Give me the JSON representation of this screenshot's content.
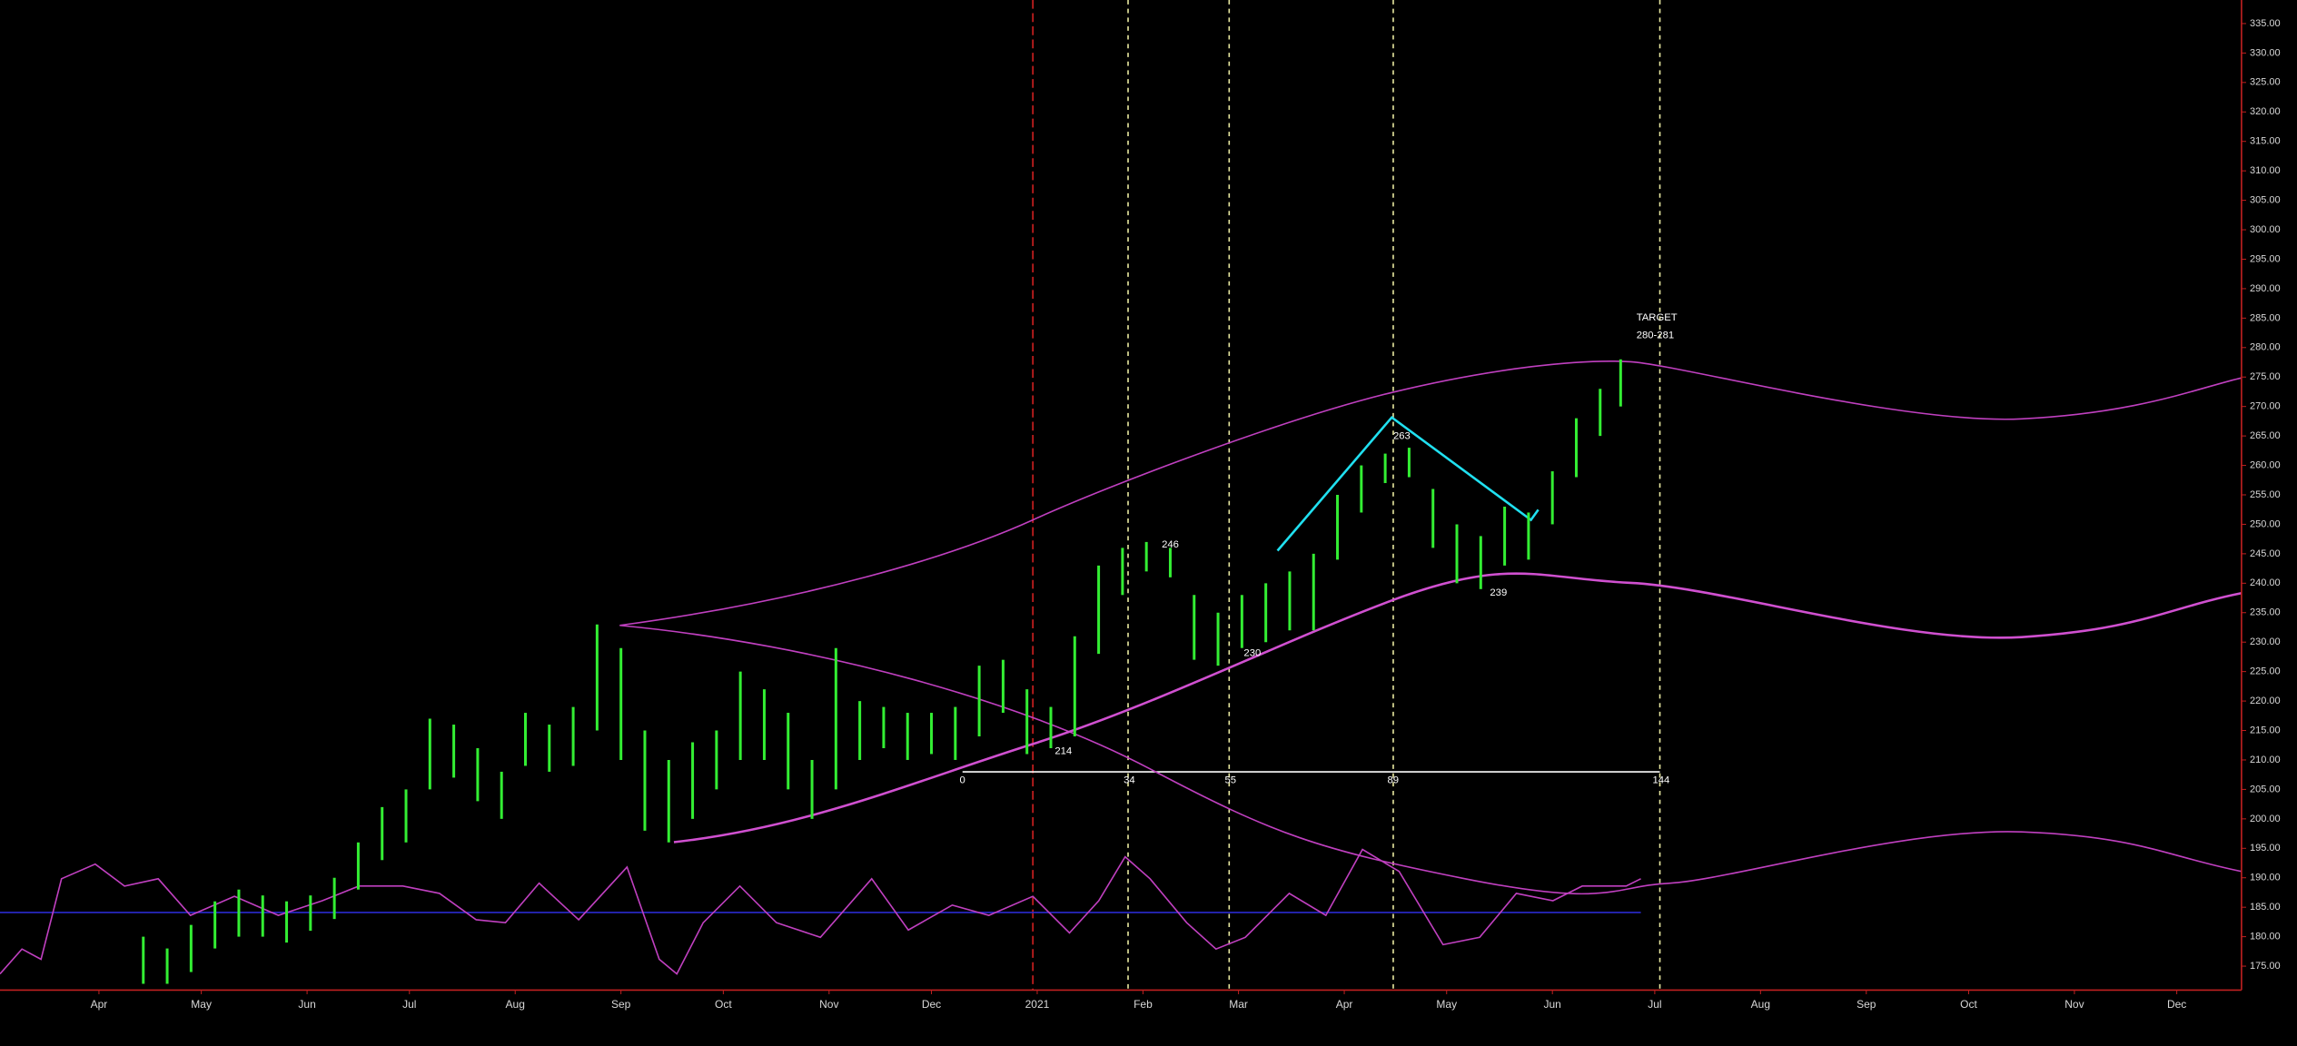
{
  "chart_data": {
    "type": "ohlc",
    "xlim": [
      0,
      657
    ],
    "ylim": [
      171,
      339
    ],
    "xticks": [
      {
        "value": 29,
        "label": "Apr"
      },
      {
        "value": 59,
        "label": "May"
      },
      {
        "value": 90,
        "label": "Jun"
      },
      {
        "value": 120,
        "label": "Jul"
      },
      {
        "value": 151,
        "label": "Aug"
      },
      {
        "value": 182,
        "label": "Sep"
      },
      {
        "value": 212,
        "label": "Oct"
      },
      {
        "value": 243,
        "label": "Nov"
      },
      {
        "value": 273,
        "label": "Dec"
      },
      {
        "value": 304,
        "label": "2021"
      },
      {
        "value": 335,
        "label": "Feb"
      },
      {
        "value": 363,
        "label": "Mar"
      },
      {
        "value": 394,
        "label": "Apr"
      },
      {
        "value": 424,
        "label": "May"
      },
      {
        "value": 455,
        "label": "Jun"
      },
      {
        "value": 485,
        "label": "Jul"
      },
      {
        "value": 516,
        "label": "Aug"
      },
      {
        "value": 547,
        "label": "Sep"
      },
      {
        "value": 577,
        "label": "Oct"
      },
      {
        "value": 608,
        "label": "Nov"
      },
      {
        "value": 638,
        "label": "Dec"
      }
    ],
    "yticks": [
      {
        "value": 175,
        "label": "175.00"
      },
      {
        "value": 180,
        "label": "180.00"
      },
      {
        "value": 185,
        "label": "185.00"
      },
      {
        "value": 190,
        "label": "190.00"
      },
      {
        "value": 195,
        "label": "195.00"
      },
      {
        "value": 200,
        "label": "200.00"
      },
      {
        "value": 205,
        "label": "205.00"
      },
      {
        "value": 210,
        "label": "210.00"
      },
      {
        "value": 215,
        "label": "215.00"
      },
      {
        "value": 220,
        "label": "220.00"
      },
      {
        "value": 225,
        "label": "225.00"
      },
      {
        "value": 230,
        "label": "230.00"
      },
      {
        "value": 235,
        "label": "235.00"
      },
      {
        "value": 240,
        "label": "240.00"
      },
      {
        "value": 245,
        "label": "245.00"
      },
      {
        "value": 250,
        "label": "250.00"
      },
      {
        "value": 255,
        "label": "255.00"
      },
      {
        "value": 260,
        "label": "260.00"
      },
      {
        "value": 265,
        "label": "265.00"
      },
      {
        "value": 270,
        "label": "270.00"
      },
      {
        "value": 275,
        "label": "275.00"
      },
      {
        "value": 280,
        "label": "280.00"
      },
      {
        "value": 285,
        "label": "285.00"
      },
      {
        "value": 290,
        "label": "290.00"
      },
      {
        "value": 295,
        "label": "295.00"
      },
      {
        "value": 300,
        "label": "300.00"
      },
      {
        "value": 305,
        "label": "305.00"
      },
      {
        "value": 310,
        "label": "310.00"
      },
      {
        "value": 315,
        "label": "315.00"
      },
      {
        "value": 320,
        "label": "320.00"
      },
      {
        "value": 325,
        "label": "325.00"
      },
      {
        "value": 330,
        "label": "330.00"
      },
      {
        "value": 335,
        "label": "335.00"
      }
    ],
    "series": [
      {
        "color": "#33ee33",
        "x": [
          42,
          49,
          56,
          63,
          70,
          77,
          84,
          91,
          98,
          105,
          112,
          119,
          126,
          133,
          140,
          147,
          154,
          161,
          168,
          175,
          182,
          189,
          196,
          203,
          210,
          217,
          224,
          231,
          238,
          245,
          252,
          259,
          266,
          273,
          280,
          287,
          294,
          301,
          308,
          315,
          322,
          329,
          336,
          343,
          350,
          357,
          364,
          371,
          378,
          385,
          392,
          399,
          406,
          413,
          420,
          427,
          434,
          441,
          448,
          455,
          462,
          469,
          475
        ],
        "high": [
          180,
          178,
          182,
          186,
          188,
          187,
          186,
          187,
          190,
          196,
          202,
          205,
          217,
          216,
          212,
          208,
          218,
          216,
          219,
          233,
          229,
          215,
          210,
          213,
          215,
          225,
          222,
          218,
          210,
          229,
          220,
          219,
          218,
          218,
          219,
          226,
          227,
          222,
          219,
          231,
          243,
          246,
          247,
          246,
          238,
          235,
          238,
          240,
          242,
          245,
          255,
          260,
          262,
          263,
          256,
          250,
          248,
          253,
          252,
          259,
          268,
          273,
          278
        ],
        "low": [
          172,
          172,
          174,
          178,
          180,
          180,
          179,
          181,
          183,
          188,
          193,
          196,
          205,
          207,
          203,
          200,
          209,
          208,
          209,
          215,
          210,
          198,
          196,
          200,
          205,
          210,
          210,
          205,
          200,
          205,
          210,
          212,
          210,
          211,
          210,
          214,
          218,
          211,
          212,
          214,
          228,
          238,
          242,
          241,
          227,
          226,
          229,
          230,
          232,
          232,
          244,
          252,
          257,
          258,
          246,
          240,
          239,
          243,
          244,
          250,
          258,
          265,
          270
        ]
      }
    ],
    "annotations": [
      "TARGET",
      "280-281",
      "246",
      "230",
      "263",
      "239",
      "214"
    ],
    "fib_labels": [
      "0",
      "34",
      "55",
      "89",
      "144"
    ]
  }
}
